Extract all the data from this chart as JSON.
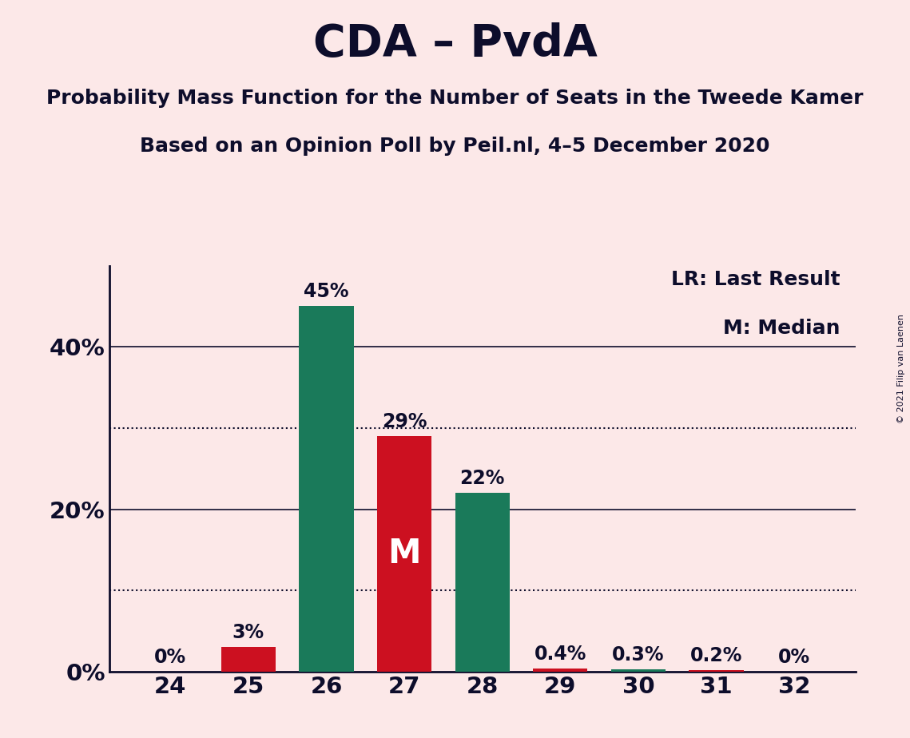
{
  "title": "CDA – PvdA",
  "subtitle1": "Probability Mass Function for the Number of Seats in the Tweede Kamer",
  "subtitle2": "Based on an Opinion Poll by Peil.nl, 4–5 December 2020",
  "copyright": "© 2021 Filip van Laenen",
  "categories": [
    24,
    25,
    26,
    27,
    28,
    29,
    30,
    31,
    32
  ],
  "values": [
    0.0,
    3.0,
    45.0,
    29.0,
    22.0,
    0.4,
    0.3,
    0.2,
    0.0
  ],
  "bar_colors": [
    "#cc1020",
    "#cc1020",
    "#1a7a5a",
    "#cc1020",
    "#1a7a5a",
    "#cc1020",
    "#1a7a5a",
    "#cc1020",
    "#1a7a5a"
  ],
  "median_bar": 27,
  "lr_bar": 28,
  "legend_lr": "LR: Last Result",
  "legend_m": "M: Median",
  "background_color": "#fce8e8",
  "text_color": "#0d0d2b",
  "yticks": [
    0,
    20,
    40
  ],
  "dotted_lines": [
    10,
    30
  ],
  "ylim": [
    0,
    50
  ],
  "bar_label_fontsize": 17,
  "title_fontsize": 40,
  "subtitle_fontsize": 18,
  "legend_fontsize": 18,
  "tick_fontsize": 21,
  "m_label_color": "white",
  "lr_label_color": "#1a7a5a",
  "inside_label_fontsize": 30
}
